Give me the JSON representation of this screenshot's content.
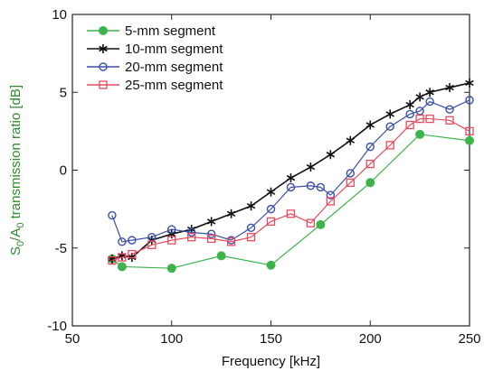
{
  "chart_data": {
    "type": "line",
    "title": "",
    "xlabel": "Frequency [kHz]",
    "ylabel_parts": [
      "S",
      "0",
      "/A",
      "0",
      " transmission ratio [dB]"
    ],
    "xlim": [
      50,
      250
    ],
    "ylim": [
      -10,
      10
    ],
    "xticks": [
      50,
      100,
      150,
      200,
      250
    ],
    "yticks": [
      -10,
      -5,
      0,
      5,
      10
    ],
    "grid": false,
    "legend_position": "top-left",
    "series": [
      {
        "name": "5-mm segment",
        "color": "#3cb44b",
        "marker": "filled-circle",
        "x": [
          70,
          75,
          100,
          125,
          150,
          175,
          200,
          225,
          250
        ],
        "y": [
          -5.7,
          -6.2,
          -6.3,
          -5.5,
          -6.1,
          -3.5,
          -0.8,
          2.3,
          1.9
        ]
      },
      {
        "name": "10-mm segment",
        "color": "#111111",
        "marker": "asterisk",
        "x": [
          70,
          75,
          80,
          90,
          100,
          110,
          120,
          130,
          140,
          150,
          160,
          170,
          180,
          190,
          200,
          210,
          220,
          225,
          230,
          240,
          250
        ],
        "y": [
          -5.7,
          -5.5,
          -5.6,
          -4.5,
          -4.1,
          -3.8,
          -3.3,
          -2.8,
          -2.3,
          -1.4,
          -0.5,
          0.2,
          1.0,
          1.9,
          2.9,
          3.6,
          4.2,
          4.7,
          5.0,
          5.3,
          5.6
        ]
      },
      {
        "name": "20-mm segment",
        "color": "#3a4fa8",
        "marker": "open-circle",
        "x": [
          70,
          75,
          80,
          90,
          100,
          110,
          120,
          130,
          140,
          150,
          160,
          170,
          175,
          180,
          190,
          200,
          210,
          220,
          225,
          230,
          240,
          250
        ],
        "y": [
          -2.9,
          -4.6,
          -4.5,
          -4.3,
          -3.8,
          -4.0,
          -4.1,
          -4.5,
          -3.7,
          -2.5,
          -1.1,
          -1.0,
          -1.1,
          -1.6,
          -0.2,
          1.5,
          2.8,
          3.6,
          3.8,
          4.4,
          3.9,
          4.5
        ]
      },
      {
        "name": "25-mm segment",
        "color": "#e84a5f",
        "marker": "open-square",
        "x": [
          70,
          75,
          80,
          90,
          100,
          110,
          120,
          130,
          140,
          150,
          160,
          170,
          180,
          190,
          200,
          210,
          220,
          225,
          230,
          240,
          250
        ],
        "y": [
          -5.8,
          -5.6,
          -5.4,
          -4.8,
          -4.5,
          -4.3,
          -4.4,
          -4.6,
          -4.3,
          -3.3,
          -2.8,
          -3.4,
          -2.0,
          -0.8,
          0.4,
          1.6,
          2.9,
          3.3,
          3.3,
          3.2,
          2.5
        ]
      }
    ]
  }
}
